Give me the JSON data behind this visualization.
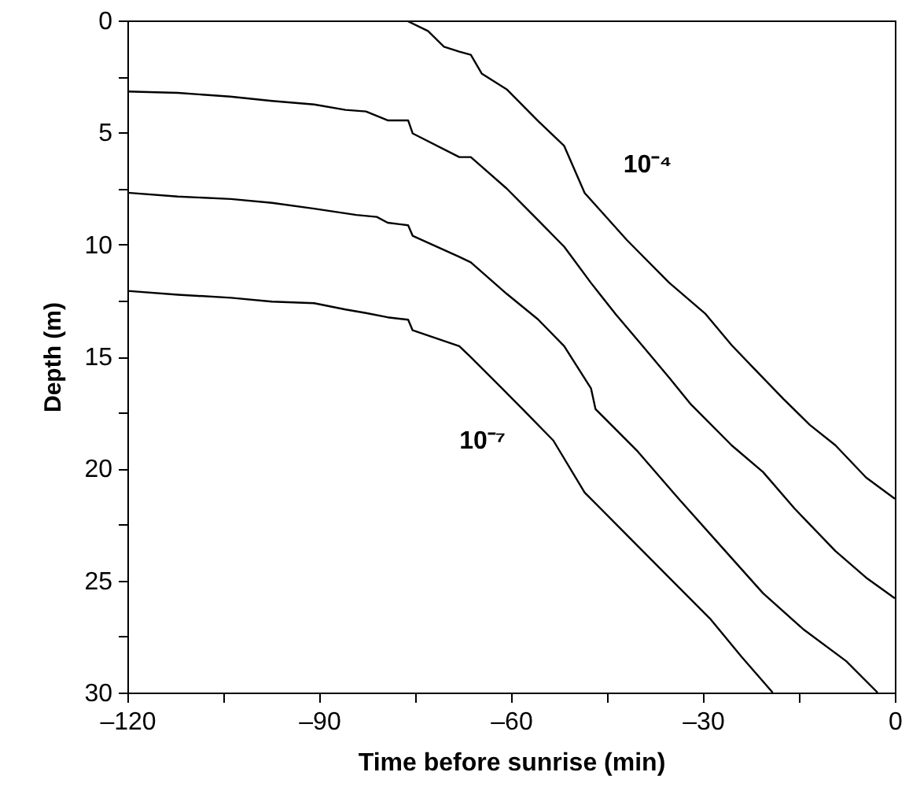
{
  "chart_data": {
    "type": "line",
    "xlabel": "Time before sunrise (min)",
    "ylabel": "Depth (m)",
    "xlim": [
      -120,
      0
    ],
    "xticks": [
      {
        "value": -120,
        "label": "–120"
      },
      {
        "value": -105,
        "label": null
      },
      {
        "value": -90,
        "label": "–90"
      },
      {
        "value": -75,
        "label": null
      },
      {
        "value": -60,
        "label": "–60"
      },
      {
        "value": -45,
        "label": null
      },
      {
        "value": -30,
        "label": "–30"
      },
      {
        "value": -15,
        "label": null
      },
      0
    ],
    "ylim": [
      30,
      0
    ],
    "yticks": [
      0,
      {
        "value": 2.5,
        "label": null
      },
      5,
      {
        "value": 7.5,
        "label": null
      },
      10,
      {
        "value": 12.5,
        "label": null
      },
      15,
      {
        "value": 17.5,
        "label": null
      },
      20,
      {
        "value": 22.5,
        "label": null
      },
      25,
      {
        "value": 27.5,
        "label": null
      },
      30
    ],
    "line_style": "solid",
    "series": [
      {
        "name": "10⁻⁴",
        "color": "#000000",
        "x": [
          -76.4,
          -73.0,
          -70.5,
          -68.1,
          -66.3,
          -64.6,
          -60.7,
          -55.8,
          -51.7,
          -48.5,
          -41.9,
          -35.3,
          -29.6,
          -25.5,
          -22.3,
          -17.4,
          -13.3,
          -9.3,
          -4.5,
          0
        ],
        "values": [
          0,
          0.47,
          1.17,
          1.39,
          1.53,
          2.37,
          3.07,
          4.48,
          5.6,
          7.7,
          9.8,
          11.7,
          13.1,
          14.5,
          15.45,
          16.9,
          18.05,
          18.96,
          20.4,
          21.35
        ]
      },
      {
        "color": "#000000",
        "x": [
          -120,
          -112.1,
          -103.9,
          -97.4,
          -90.8,
          -85.9,
          -82.7,
          -79.3,
          -76.1,
          -75.4,
          -68.1,
          -66.3,
          -60.7,
          -55.8,
          -51.7,
          -47.5,
          -43.6,
          -39.4,
          -35.3,
          -32.0,
          -25.5,
          -20.6,
          -15.7,
          -9.3,
          -4.5,
          0
        ],
        "values": [
          3.17,
          3.23,
          3.4,
          3.59,
          3.75,
          3.99,
          4.06,
          4.46,
          4.46,
          5.04,
          6.1,
          6.1,
          7.5,
          8.91,
          10.1,
          11.72,
          13.13,
          14.54,
          15.94,
          17.1,
          18.97,
          20.16,
          21.78,
          23.68,
          24.87,
          25.79
        ]
      },
      {
        "color": "#000000",
        "x": [
          -120,
          -112.1,
          -103.8,
          -97.4,
          -90.8,
          -84.2,
          -81.0,
          -79.3,
          -76.1,
          -75.4,
          -68.1,
          -66.3,
          -60.7,
          -55.8,
          -51.7,
          -47.5,
          -46.8,
          -40.2,
          -33.8,
          -27.2,
          -20.6,
          -14.2,
          -7.6,
          -2.7
        ],
        "values": [
          7.69,
          7.86,
          7.97,
          8.14,
          8.4,
          8.68,
          8.77,
          9.03,
          9.14,
          9.61,
          10.55,
          10.8,
          12.2,
          13.34,
          14.54,
          16.43,
          17.35,
          19.24,
          21.35,
          23.46,
          25.57,
          27.2,
          28.6,
          30
        ]
      },
      {
        "name": "10⁻⁷",
        "color": "#000000",
        "x": [
          -120,
          -112.1,
          -103.8,
          -97.4,
          -90.8,
          -85.9,
          -82.7,
          -79.3,
          -76.1,
          -75.4,
          -68.1,
          -66.3,
          -61.4,
          -58.2,
          -53.4,
          -48.5,
          -41.9,
          -35.3,
          -28.9,
          -24.0,
          -19.1
        ],
        "values": [
          12.07,
          12.24,
          12.38,
          12.55,
          12.62,
          12.9,
          13.06,
          13.25,
          13.36,
          13.83,
          14.54,
          15.03,
          16.43,
          17.35,
          18.75,
          21.07,
          22.97,
          24.87,
          26.7,
          28.39,
          30
        ]
      }
    ]
  }
}
